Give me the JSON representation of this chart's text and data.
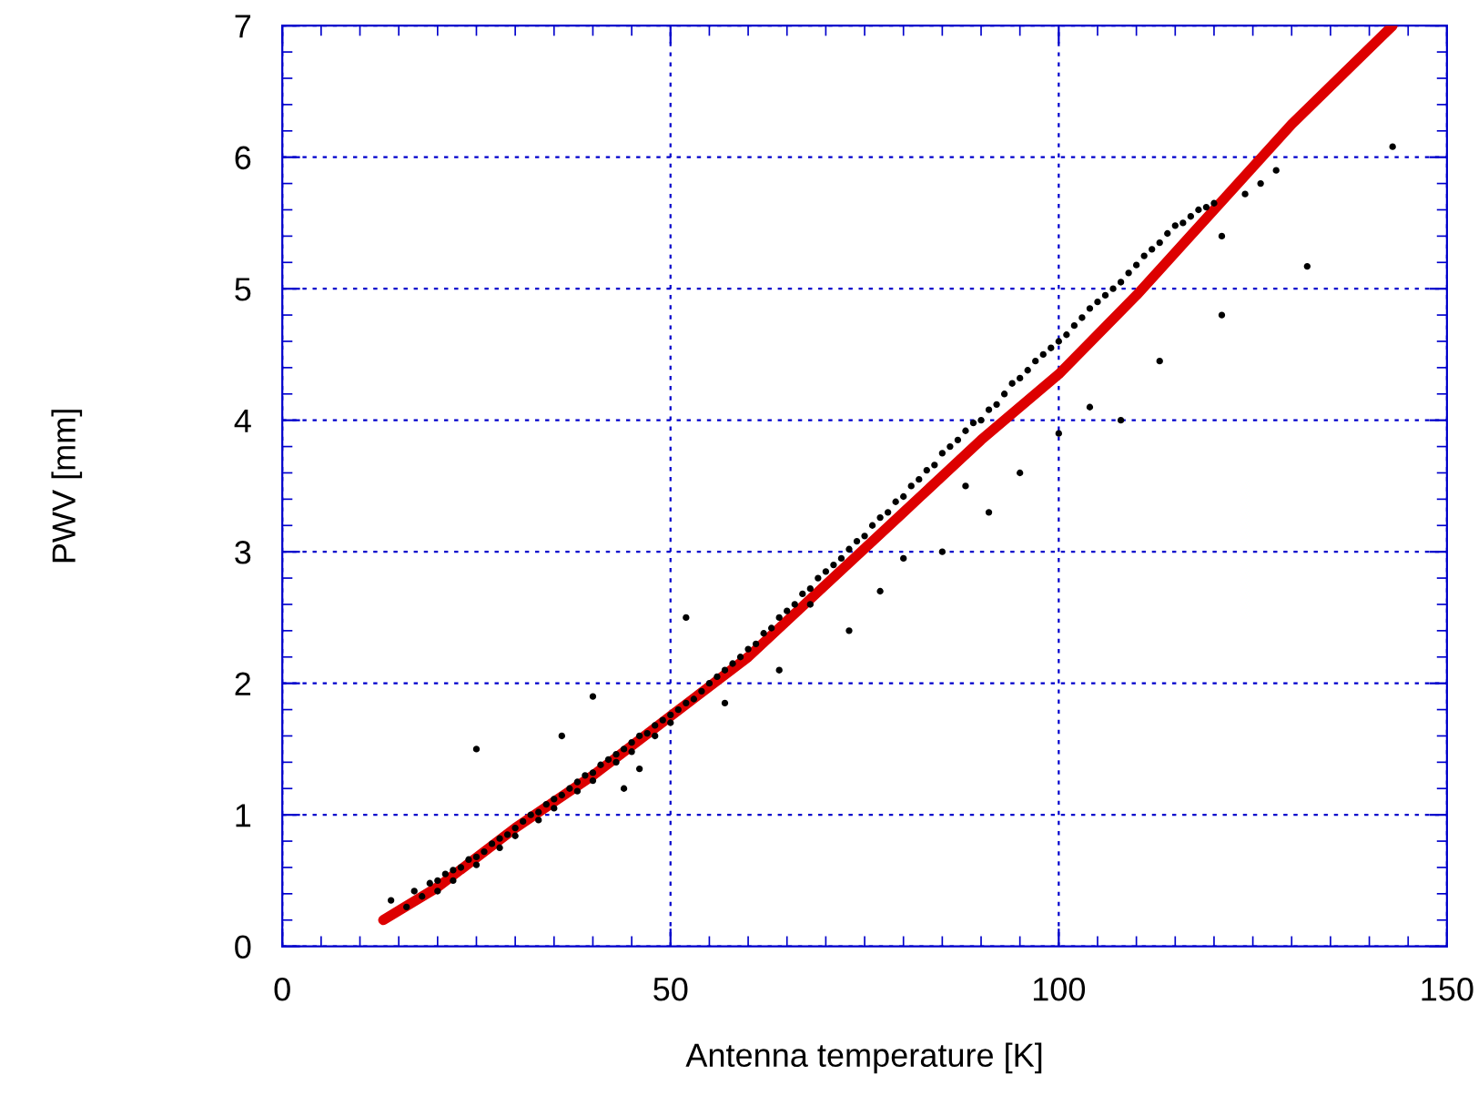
{
  "chart_data": {
    "type": "scatter",
    "xlabel": "Antenna temperature [K]",
    "ylabel": "PWV [mm]",
    "xlim": [
      0,
      150
    ],
    "ylim": [
      0,
      7
    ],
    "xticks": [
      0,
      50,
      100,
      150
    ],
    "yticks": [
      0,
      1,
      2,
      3,
      4,
      5,
      6,
      7
    ],
    "grid": true,
    "series": [
      {
        "color": "#000000",
        "marker": "circle",
        "x": [
          14,
          16,
          17,
          18,
          19,
          20,
          20,
          21,
          22,
          22,
          23,
          24,
          25,
          25,
          26,
          27,
          28,
          28,
          29,
          30,
          30,
          31,
          32,
          33,
          33,
          34,
          35,
          35,
          36,
          37,
          38,
          38,
          39,
          40,
          40,
          41,
          42,
          43,
          43,
          44,
          45,
          45,
          46,
          47,
          48,
          48,
          49,
          50,
          50,
          51,
          52,
          53,
          54,
          55,
          56,
          57,
          58,
          59,
          60,
          61,
          62,
          63,
          64,
          65,
          66,
          67,
          68,
          69,
          70,
          71,
          72,
          73,
          74,
          75,
          76,
          77,
          78,
          79,
          80,
          81,
          82,
          83,
          84,
          85,
          86,
          87,
          88,
          89,
          90,
          91,
          92,
          93,
          94,
          95,
          96,
          97,
          98,
          99,
          100,
          101,
          102,
          103,
          104,
          105,
          106,
          107,
          108,
          109,
          110,
          111,
          112,
          113,
          114,
          115,
          116,
          117,
          118,
          119,
          120,
          121,
          124,
          126,
          128,
          132,
          143,
          25,
          36,
          40,
          46,
          52,
          44,
          57,
          64,
          68,
          73,
          77,
          80,
          85,
          88,
          91,
          95,
          100,
          104,
          108,
          113,
          121
        ],
        "values": [
          0.35,
          0.3,
          0.42,
          0.38,
          0.48,
          0.5,
          0.42,
          0.55,
          0.58,
          0.5,
          0.6,
          0.66,
          0.68,
          0.62,
          0.72,
          0.78,
          0.82,
          0.75,
          0.85,
          0.9,
          0.84,
          0.95,
          1.0,
          1.02,
          0.96,
          1.08,
          1.12,
          1.05,
          1.15,
          1.2,
          1.25,
          1.18,
          1.3,
          1.32,
          1.26,
          1.38,
          1.42,
          1.46,
          1.4,
          1.5,
          1.55,
          1.48,
          1.6,
          1.62,
          1.68,
          1.6,
          1.72,
          1.76,
          1.7,
          1.8,
          1.85,
          1.88,
          1.94,
          2.0,
          2.05,
          2.1,
          2.15,
          2.2,
          2.26,
          2.3,
          2.38,
          2.42,
          2.5,
          2.55,
          2.6,
          2.68,
          2.72,
          2.8,
          2.85,
          2.9,
          2.95,
          3.02,
          3.08,
          3.12,
          3.2,
          3.26,
          3.3,
          3.38,
          3.42,
          3.5,
          3.55,
          3.62,
          3.66,
          3.75,
          3.8,
          3.85,
          3.92,
          3.98,
          4.0,
          4.08,
          4.12,
          4.2,
          4.28,
          4.32,
          4.38,
          4.45,
          4.5,
          4.55,
          4.6,
          4.65,
          4.72,
          4.78,
          4.85,
          4.9,
          4.95,
          5.0,
          5.05,
          5.12,
          5.18,
          5.25,
          5.3,
          5.35,
          5.42,
          5.48,
          5.5,
          5.55,
          5.6,
          5.62,
          5.65,
          5.4,
          5.72,
          5.8,
          5.9,
          5.17,
          6.08,
          1.5,
          1.6,
          1.9,
          1.35,
          2.5,
          1.2,
          1.85,
          2.1,
          2.6,
          2.4,
          2.7,
          2.95,
          3.0,
          3.5,
          3.3,
          3.6,
          3.9,
          4.1,
          4.0,
          4.45,
          4.8
        ]
      },
      {
        "type": "line",
        "color": "#dd0000",
        "x": [
          13,
          20,
          30,
          40,
          50,
          60,
          70,
          80,
          90,
          100,
          110,
          120,
          130,
          143
        ],
        "values": [
          0.2,
          0.45,
          0.9,
          1.3,
          1.75,
          2.2,
          2.75,
          3.3,
          3.85,
          4.35,
          4.95,
          5.6,
          6.25,
          7.0
        ]
      }
    ]
  }
}
